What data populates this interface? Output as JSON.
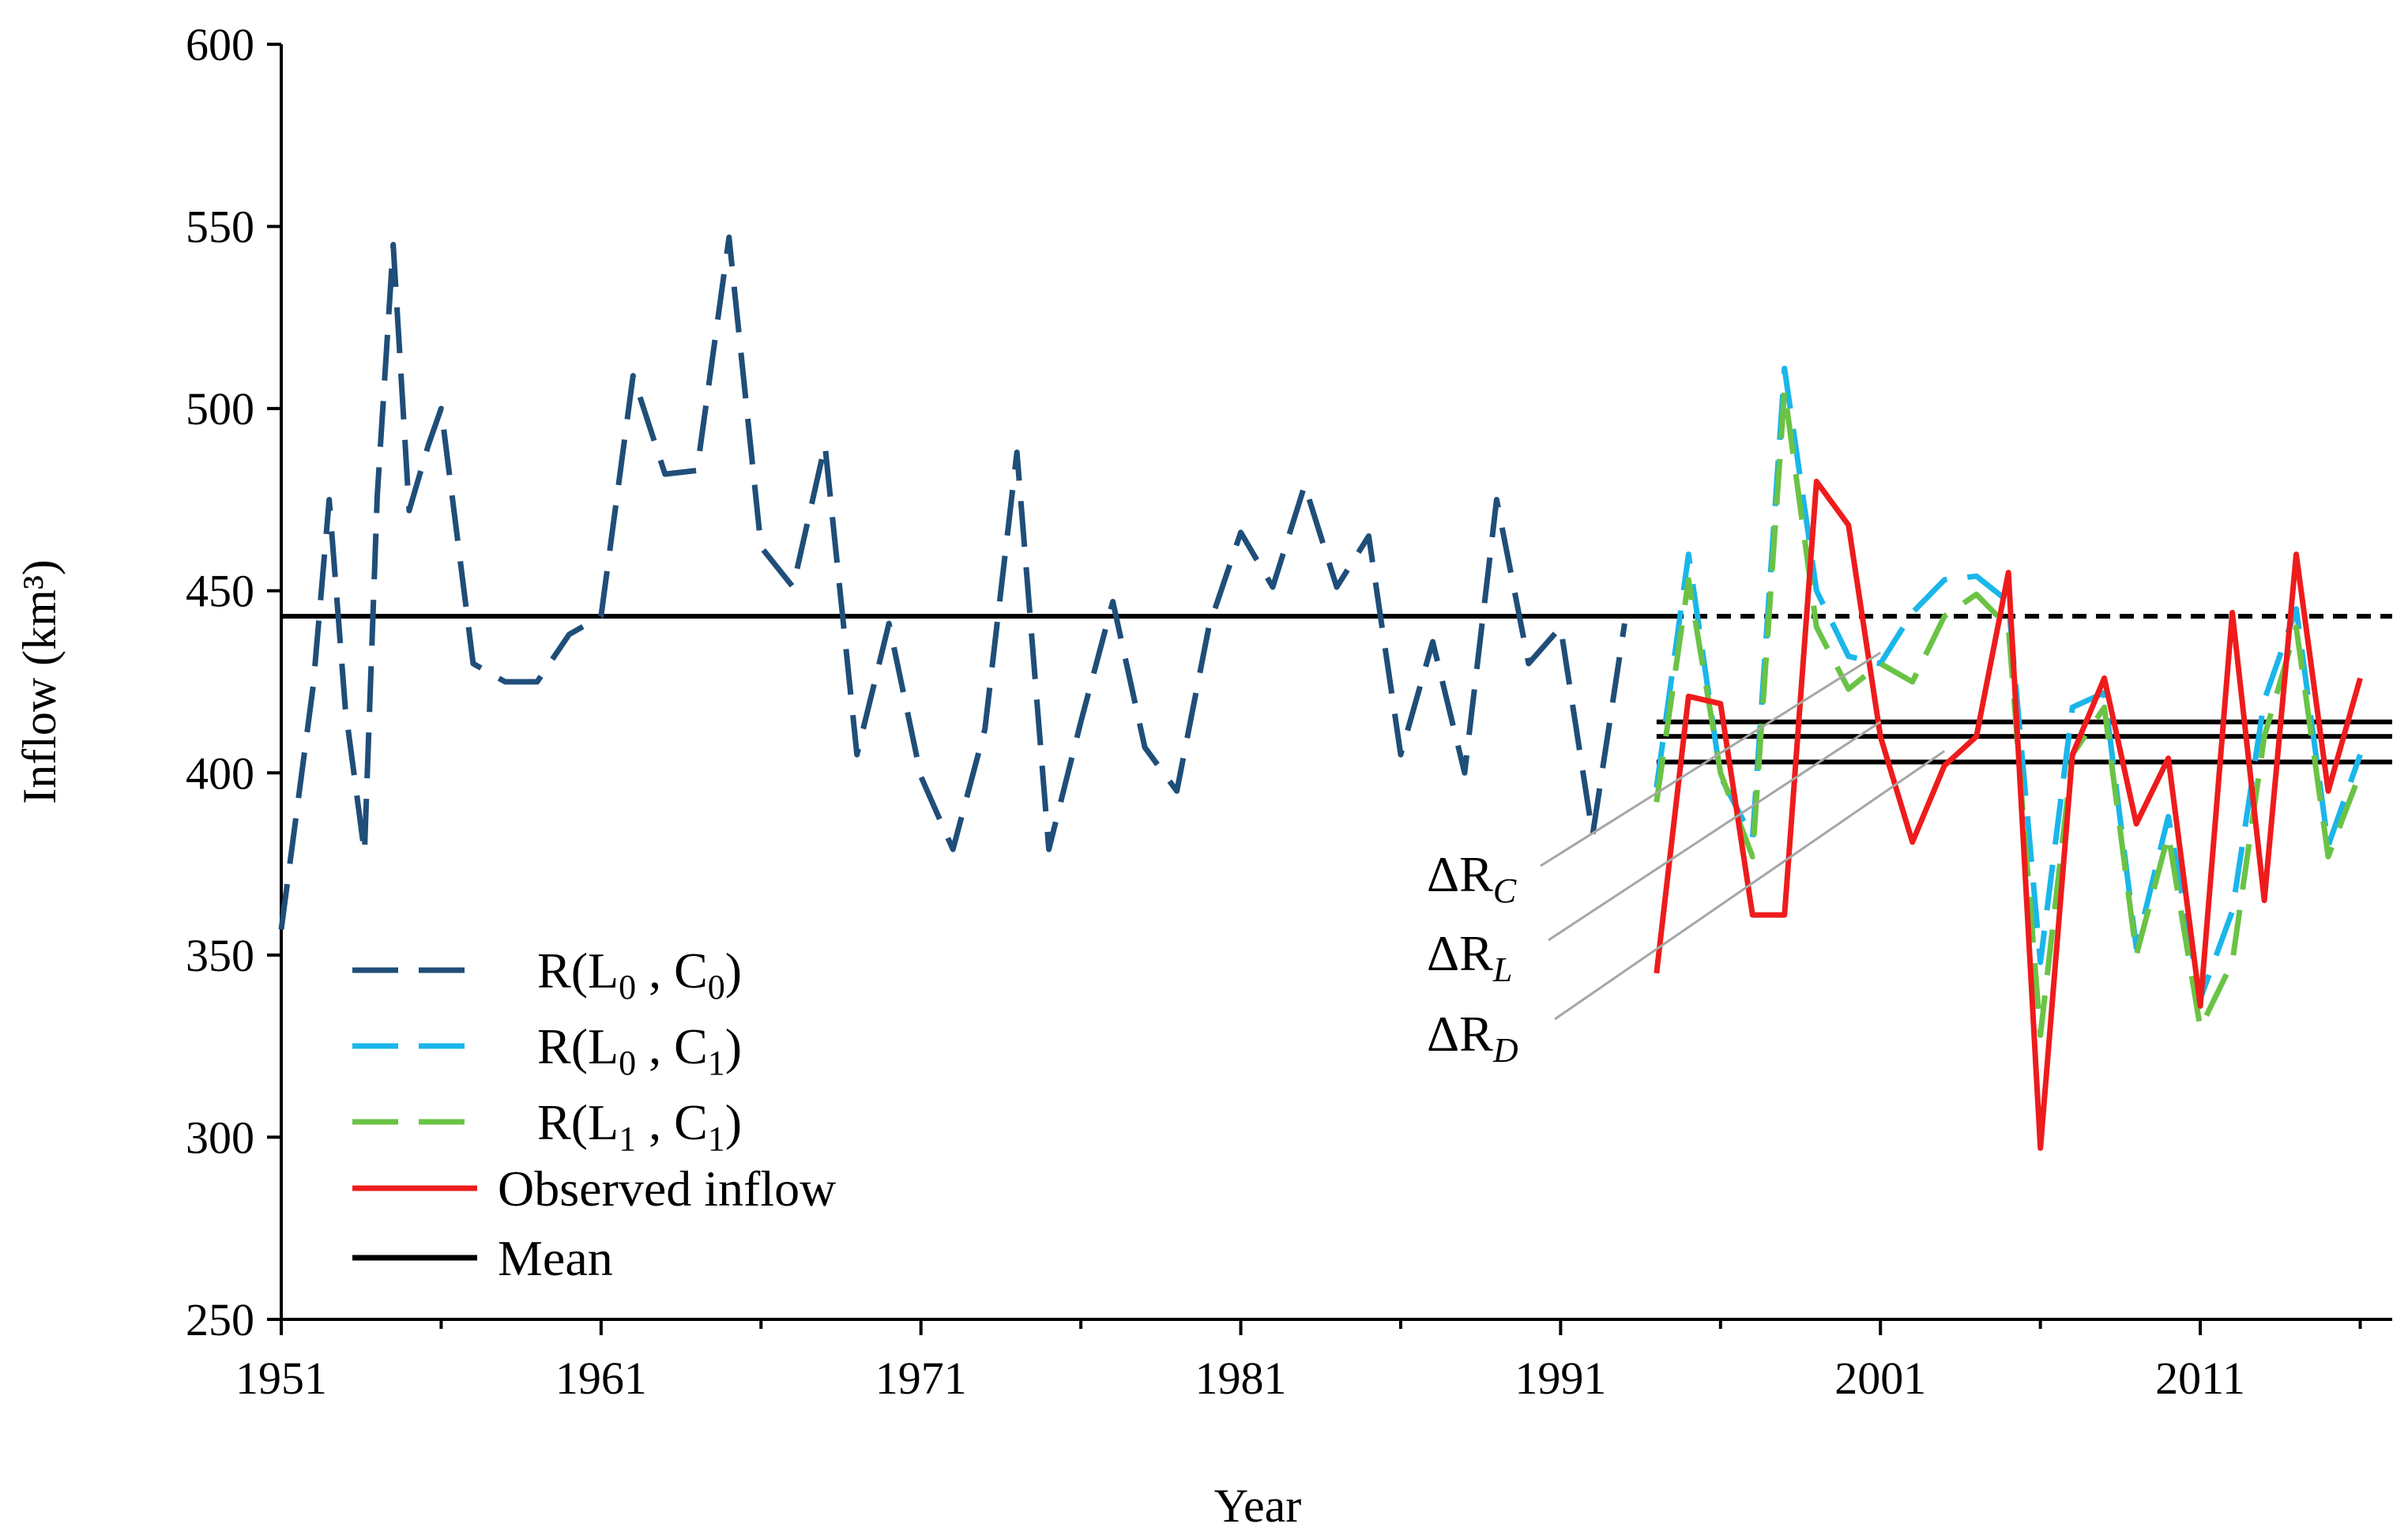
{
  "chart_data": {
    "type": "line",
    "title": "",
    "xlabel": "Year",
    "ylabel": "Inflow  (km³)",
    "xlim": [
      1951,
      2017
    ],
    "ylim": [
      250,
      600
    ],
    "xticks": [
      1951,
      1961,
      1971,
      1981,
      1991,
      2001,
      2011
    ],
    "yticks": [
      250,
      300,
      350,
      400,
      450,
      500,
      550,
      600
    ],
    "series": [
      {
        "name": "R(L0, C0)",
        "label_main": "R(L",
        "label_sub1": "0",
        "label_mid": " , C",
        "label_sub2": "0",
        "label_end": ")",
        "color": "#1f4e79",
        "style": "dashed",
        "x": [
          1951,
          1952,
          1952.5,
          1953,
          1953.6,
          1954,
          1954.5,
          1955,
          1955.6,
          1956,
          1957,
          1958,
          1959,
          1960,
          1961,
          1962,
          1963,
          1964,
          1965,
          1966,
          1967,
          1968,
          1969,
          1970,
          1971,
          1972,
          1973,
          1974,
          1975,
          1976,
          1977,
          1978,
          1979,
          1980,
          1981,
          1982,
          1983,
          1984,
          1985,
          1986,
          1987,
          1988,
          1989,
          1990,
          1991,
          1992,
          1993
        ],
        "values": [
          357,
          424,
          475,
          418,
          378,
          476,
          545,
          472,
          490,
          500,
          430,
          425,
          425,
          438,
          443,
          509,
          482,
          483,
          547,
          462,
          451,
          490,
          405,
          441,
          399,
          379,
          412,
          488,
          379,
          414,
          447,
          407,
          395,
          440,
          466,
          451,
          479,
          451,
          465,
          405,
          436,
          400,
          475,
          430,
          440,
          383,
          441
        ]
      },
      {
        "name": "R(L0, C1)",
        "label_main": "R(L",
        "label_sub1": "0",
        "label_mid": " , C",
        "label_sub2": "1",
        "label_end": ")",
        "color": "#1ab6ea",
        "style": "dashed",
        "x": [
          1994,
          1995,
          1996,
          1997,
          1998,
          1999,
          2000,
          2001,
          2002,
          2003,
          2004,
          2005,
          2006,
          2007,
          2008,
          2009,
          2010,
          2011,
          2012,
          2013,
          2014,
          2015,
          2016
        ],
        "values": [
          396,
          460,
          399,
          382,
          511,
          450,
          432,
          430,
          444,
          453,
          454,
          447,
          348,
          418,
          422,
          352,
          388,
          338,
          362,
          420,
          445,
          380,
          405
        ]
      },
      {
        "name": "R(L1, C1)",
        "label_main": "R(L",
        "label_sub1": "1",
        "label_mid": " , C",
        "label_sub2": "1",
        "label_end": ")",
        "color": "#6ac345",
        "style": "dashed",
        "x": [
          1994,
          1995,
          1996,
          1997,
          1998,
          1999,
          2000,
          2001,
          2002,
          2003,
          2004,
          2005,
          2006,
          2007,
          2008,
          2009,
          2010,
          2011,
          2012,
          2013,
          2014,
          2015,
          2016
        ],
        "values": [
          392,
          453,
          400,
          377,
          505,
          440,
          423,
          430,
          425,
          443,
          449,
          440,
          328,
          405,
          418,
          350,
          383,
          330,
          348,
          410,
          440,
          377,
          400
        ]
      },
      {
        "name": "Observed inflow",
        "label_main": "Observed inflow",
        "color": "#ee1c1c",
        "style": "solid",
        "x": [
          1994,
          1995,
          1996,
          1997,
          1998,
          1999,
          2000,
          2001,
          2002,
          2003,
          2004,
          2005,
          2006,
          2007,
          2008,
          2009,
          2010,
          2011,
          2012,
          2013,
          2014,
          2015,
          2016
        ],
        "values": [
          345,
          421,
          419,
          361,
          361,
          480,
          468,
          410,
          381,
          402,
          410,
          455,
          297,
          405,
          426,
          386,
          404,
          336,
          444,
          365,
          460,
          395,
          426
        ]
      }
    ],
    "mean_lines": [
      {
        "label": "Mean",
        "x_start": 1951,
        "x_end": 1994.4,
        "value": 443,
        "style": "solid"
      },
      {
        "x_start": 1994.4,
        "x_end": 2017,
        "value": 443,
        "style": "dashed"
      },
      {
        "x_start": 1994,
        "x_end": 2017,
        "value": 414,
        "style": "solid"
      },
      {
        "x_start": 1994,
        "x_end": 2017,
        "value": 410,
        "style": "solid"
      },
      {
        "x_start": 1994,
        "x_end": 2017,
        "value": 403,
        "style": "solid"
      }
    ],
    "legend": {
      "position": "bottom-left",
      "mean_label": "Mean",
      "mean_color": "#000000"
    },
    "annotations": [
      {
        "main": "ΔR",
        "sub": "C",
        "points_to_year": 2001,
        "points_to_value": 433
      },
      {
        "main": "ΔR",
        "sub": "L",
        "points_to_year": 2001,
        "points_to_value": 414
      },
      {
        "main": "ΔR",
        "sub": "D",
        "points_to_year": 2003,
        "points_to_value": 406
      }
    ]
  }
}
